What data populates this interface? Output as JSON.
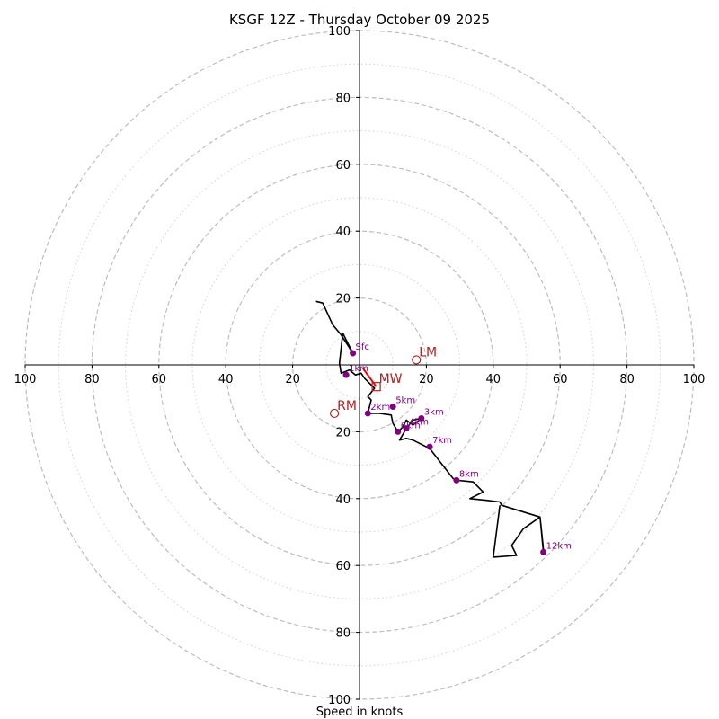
{
  "chart_data": {
    "type": "hodograph",
    "title": "KSGF 12Z - Thursday October 09 2025",
    "xlabel": "Speed in knots",
    "units": "knots",
    "xlim": [
      -100,
      100
    ],
    "ylim": [
      -100,
      100
    ],
    "major_rings": [
      20,
      40,
      60,
      80,
      100
    ],
    "minor_rings": [
      10,
      30,
      50,
      70,
      90
    ],
    "x_tick_labels": [
      "100",
      "80",
      "60",
      "40",
      "20",
      "20",
      "40",
      "60",
      "80",
      "100"
    ],
    "x_tick_values": [
      -100,
      -80,
      -60,
      -40,
      -20,
      20,
      40,
      60,
      80,
      100
    ],
    "y_tick_labels_top": [
      "20",
      "40",
      "60",
      "80",
      "100"
    ],
    "y_tick_labels_bottom": [
      "20",
      "40",
      "60",
      "80",
      "100"
    ],
    "wind_trace": [
      [
        -13,
        19
      ],
      [
        -11,
        18.5
      ],
      [
        -8,
        12
      ],
      [
        -5.5,
        9
      ],
      [
        -2,
        3.5
      ],
      [
        -5,
        9.5
      ],
      [
        -6,
        0.5
      ],
      [
        -5.5,
        -2.5
      ],
      [
        -3,
        -1.5
      ],
      [
        -1.2,
        -3
      ],
      [
        0.5,
        -2.5
      ],
      [
        1.5,
        -4
      ],
      [
        4,
        -6.5
      ],
      [
        4.5,
        -7
      ],
      [
        2.5,
        -9.5
      ],
      [
        3.5,
        -10.5
      ],
      [
        2.5,
        -14.5
      ],
      [
        6,
        -14.5
      ],
      [
        9.5,
        -15
      ],
      [
        10,
        -17.5
      ],
      [
        11.5,
        -20
      ],
      [
        13,
        -18.5
      ],
      [
        14,
        -16.5
      ],
      [
        16,
        -18
      ],
      [
        18.5,
        -16
      ],
      [
        16,
        -16.5
      ],
      [
        14,
        -19
      ],
      [
        12,
        -22.5
      ],
      [
        14,
        -22
      ],
      [
        16,
        -22.5
      ],
      [
        19,
        -24
      ],
      [
        21,
        -25
      ],
      [
        28,
        -34
      ],
      [
        29,
        -34.5
      ],
      [
        34,
        -35
      ],
      [
        37,
        -38
      ],
      [
        33,
        -40
      ],
      [
        38,
        -40.5
      ],
      [
        42,
        -41
      ],
      [
        42.5,
        -42
      ],
      [
        54,
        -45.5
      ],
      [
        55,
        -55
      ],
      [
        55,
        -56
      ],
      [
        54,
        -45.5
      ],
      [
        49,
        -49
      ],
      [
        45.5,
        -54
      ],
      [
        47,
        -57
      ],
      [
        40,
        -57.5
      ],
      [
        42,
        -42
      ]
    ],
    "height_points": [
      {
        "label": "Sfc",
        "u": -2,
        "v": 3.5
      },
      {
        "label": "1km",
        "u": -4,
        "v": -3
      },
      {
        "label": "2km",
        "u": 2.5,
        "v": -14.5
      },
      {
        "label": "3km",
        "u": 18.5,
        "v": -16
      },
      {
        "label": "4km",
        "u": 14,
        "v": -19
      },
      {
        "label": "5km",
        "u": 10,
        "v": -12.5
      },
      {
        "label": "6km",
        "u": 11.5,
        "v": -20
      },
      {
        "label": "7km",
        "u": 21,
        "v": -24.5
      },
      {
        "label": "8km",
        "u": 29,
        "v": -34.5
      },
      {
        "label": "12km",
        "u": 55,
        "v": -56
      }
    ],
    "storm_motions": [
      {
        "label": "LM",
        "u": 17,
        "v": 1.5
      },
      {
        "label": "RM",
        "u": -7.5,
        "v": -14.5
      },
      {
        "label": "MW",
        "u": 5,
        "v": -6.5
      }
    ],
    "mean_wind_vector": {
      "from": [
        1,
        -1
      ],
      "to": [
        5,
        -6.5
      ]
    }
  }
}
